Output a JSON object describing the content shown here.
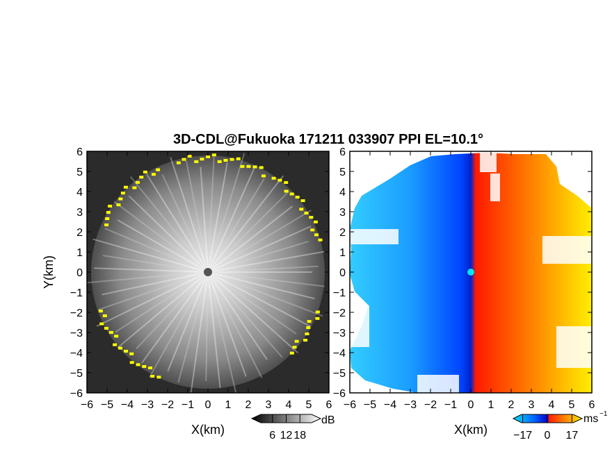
{
  "title": "3D-CDL@Fukuoka 171211 033907 PPI EL=10.1°",
  "colors": {
    "yellow_flag": "#ffff00",
    "blue_neg": "#0033ff",
    "cyan_center": "#00e5ff",
    "red_pos": "#ff2000",
    "yellow_pos": "#ffee00"
  },
  "chart_data": [
    {
      "type": "heatmap",
      "name": "snr-ppi",
      "title": "",
      "xlabel": "X(km)",
      "ylabel": "Y(km)",
      "xlim": [
        -6,
        6
      ],
      "ylim": [
        -6,
        6
      ],
      "xticks": [
        "−6",
        "−5",
        "−4",
        "−3",
        "−2",
        "−1",
        "0",
        "1",
        "2",
        "3",
        "4",
        "5",
        "6"
      ],
      "yticks": [
        "6",
        "5",
        "4",
        "3",
        "2",
        "1",
        "0",
        "−1",
        "−2",
        "−3",
        "−4",
        "−5",
        "−6"
      ],
      "colormap": "grayscale",
      "colorbar": {
        "ticks": [
          "6",
          "12",
          "18"
        ],
        "unit": "dB",
        "range": [
          0,
          24
        ]
      },
      "observation_range_km": 5.6,
      "flag_color": "yellow"
    },
    {
      "type": "heatmap",
      "name": "doppler-velocity-ppi",
      "title": "",
      "xlabel": "X(km)",
      "ylabel": "",
      "xlim": [
        -6,
        6
      ],
      "ylim": [
        -6,
        6
      ],
      "xticks": [
        "−6",
        "−5",
        "−4",
        "−3",
        "−2",
        "−1",
        "0",
        "1",
        "2",
        "3",
        "4",
        "5",
        "6"
      ],
      "yticks": [
        "6",
        "5",
        "4",
        "3",
        "2",
        "1",
        "0",
        "−1",
        "−2",
        "−3",
        "−4",
        "−5",
        "−6"
      ],
      "colormap": "cyan-blue-red-yellow",
      "colorbar": {
        "ticks": [
          "−17",
          "0",
          "17"
        ],
        "unit": "ms",
        "unit_exp": "−1",
        "range": [
          -25,
          25
        ]
      },
      "notes": "negative (toward radar) on west half, positive on east half"
    }
  ]
}
